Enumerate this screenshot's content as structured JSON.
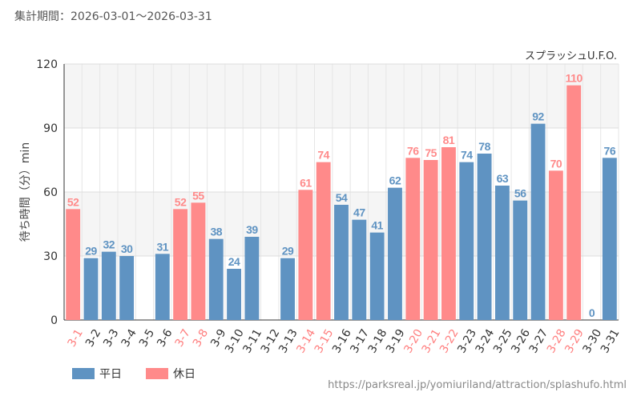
{
  "header": {
    "period": "集計期間：2026-03-01～2026-03-31"
  },
  "legend": [
    {
      "label": "平日",
      "color": "#5f93c2"
    },
    {
      "label": "休日",
      "color": "#ff8a8a"
    }
  ],
  "source": "https://parksreal.jp/yomiuriland/attraction/splashufo.html",
  "chart_data": {
    "type": "bar",
    "title": "スプラッシュU.F.O.",
    "ylabel": "待ち時間（分）min",
    "xlabel": "",
    "ylim": [
      0,
      120
    ],
    "yticks": [
      0,
      30,
      60,
      90,
      120
    ],
    "grid": true,
    "legend_position": "bottom-left",
    "categories": [
      "3-1",
      "3-2",
      "3-3",
      "3-4",
      "3-5",
      "3-6",
      "3-7",
      "3-8",
      "3-9",
      "3-10",
      "3-11",
      "3-12",
      "3-13",
      "3-14",
      "3-15",
      "3-16",
      "3-17",
      "3-18",
      "3-19",
      "3-20",
      "3-21",
      "3-22",
      "3-23",
      "3-24",
      "3-25",
      "3-26",
      "3-27",
      "3-28",
      "3-29",
      "3-30",
      "3-31"
    ],
    "values": [
      52,
      29,
      32,
      30,
      null,
      31,
      52,
      55,
      38,
      24,
      39,
      null,
      29,
      61,
      74,
      54,
      47,
      41,
      62,
      76,
      75,
      81,
      74,
      78,
      63,
      56,
      92,
      70,
      110,
      0,
      76
    ],
    "day_type": [
      "休日",
      "平日",
      "平日",
      "平日",
      "平日",
      "平日",
      "休日",
      "休日",
      "平日",
      "平日",
      "平日",
      "平日",
      "平日",
      "休日",
      "休日",
      "平日",
      "平日",
      "平日",
      "平日",
      "休日",
      "休日",
      "休日",
      "平日",
      "平日",
      "平日",
      "平日",
      "平日",
      "休日",
      "休日",
      "平日",
      "平日"
    ],
    "colors": {
      "平日": "#5f93c2",
      "休日": "#ff8a8a"
    }
  }
}
